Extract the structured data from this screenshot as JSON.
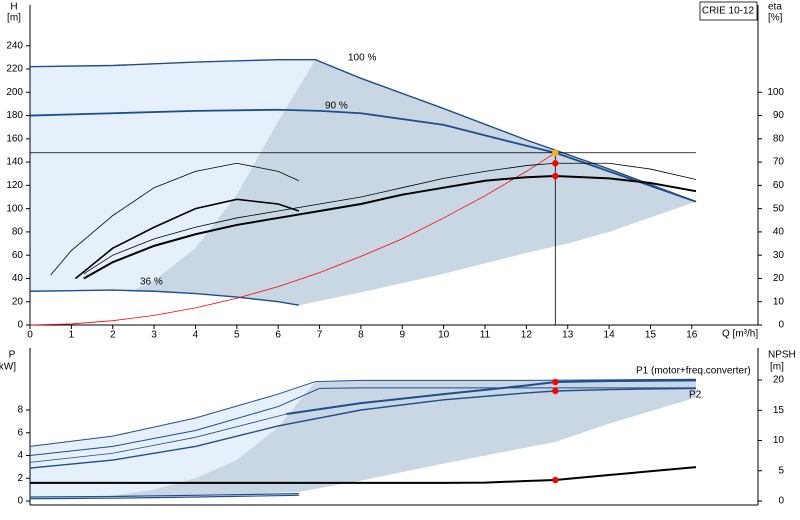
{
  "chart_data": [
    {
      "type": "line",
      "model": "CRIE 10-12",
      "y_label": "H",
      "y_unit": "[m]",
      "y2_label": "eta",
      "y2_unit": "[%]",
      "x_label": "Q [m³/h]",
      "xlim": [
        0,
        17.6
      ],
      "xticks": [
        0,
        1,
        2,
        3,
        4,
        5,
        6,
        7,
        8,
        9,
        10,
        11,
        12,
        13,
        14,
        15,
        16
      ],
      "ylim": [
        0,
        275
      ],
      "yticks": [
        0,
        20,
        40,
        60,
        80,
        100,
        120,
        140,
        160,
        180,
        200,
        220,
        240
      ],
      "y2lim": [
        0,
        137.5
      ],
      "y2ticks": [
        0,
        10,
        20,
        30,
        40,
        50,
        60,
        70,
        80,
        90,
        100
      ],
      "areas": [
        {
          "color": "#e6f0fa",
          "x": [
            0,
            2,
            4,
            6,
            6.9,
            8,
            10,
            12,
            14,
            16.1,
            14,
            13,
            12,
            10,
            8,
            6.5,
            6,
            5,
            4,
            3,
            2,
            1,
            0
          ],
          "values": [
            222,
            223,
            226,
            228,
            228,
            212,
            186,
            159,
            134,
            106,
            80,
            70,
            62,
            44,
            28,
            17,
            20,
            24,
            27,
            29,
            30,
            29.5,
            29
          ]
        },
        {
          "color": "#c8d7e3",
          "x": [
            6.9,
            6,
            5,
            4,
            3,
            2.5,
            3,
            4,
            5,
            6,
            6.5,
            8,
            10,
            12,
            13,
            14,
            16.1,
            14,
            12,
            10,
            8
          ],
          "values": [
            228,
            175,
            112,
            66,
            38,
            30,
            29,
            27,
            24,
            20,
            17,
            28,
            44,
            62,
            70,
            80,
            106,
            134,
            159,
            186,
            212
          ]
        }
      ],
      "series": [
        {
          "name": "100 %",
          "color": "#1f4e8c",
          "width": 1.4,
          "x": [
            0,
            2,
            4,
            6,
            6.9,
            8,
            10,
            12,
            14,
            16.1
          ],
          "values": [
            222,
            223,
            226,
            228,
            228,
            212,
            186,
            159,
            134,
            106
          ]
        },
        {
          "name": "90 %",
          "color": "#1f4e8c",
          "width": 1.8,
          "x": [
            0,
            2,
            4,
            6,
            7,
            8,
            10,
            11,
            12,
            12.7,
            14,
            16.1
          ],
          "values": [
            180,
            182,
            184,
            185,
            184,
            182,
            172,
            163,
            154,
            148,
            132,
            106
          ]
        },
        {
          "name": "36 %",
          "color": "#1f4e8c",
          "width": 1.4,
          "x": [
            0,
            1,
            2,
            3,
            4,
            5,
            6,
            6.5
          ],
          "values": [
            29,
            29.5,
            30,
            29,
            27,
            24,
            20,
            17
          ]
        },
        {
          "color": "#000000",
          "width": 0.8,
          "x": [
            0,
            16.1
          ],
          "values": [
            148,
            148
          ]
        },
        {
          "color": "#000000",
          "width": 0.8,
          "x": [
            12.7,
            12.7
          ],
          "values": [
            148,
            0
          ]
        },
        {
          "color": "#ff0000",
          "width": 0.8,
          "x": [
            0,
            1,
            2,
            3,
            4,
            5,
            6,
            7,
            8,
            9,
            10,
            11,
            12,
            12.7
          ],
          "values": [
            0,
            0.9,
            3.7,
            8.3,
            14.7,
            23,
            33,
            45,
            59,
            74,
            92,
            111,
            132,
            148
          ]
        },
        {
          "color": "#000000",
          "width": 0.8,
          "axis": "y2",
          "x": [
            1.3,
            2,
            3,
            4,
            5,
            6,
            7,
            8,
            9,
            10,
            11,
            12,
            12.7,
            14,
            15,
            16.1
          ],
          "values": [
            22,
            30,
            37,
            42,
            46,
            49,
            52,
            55,
            59,
            63,
            66,
            68.5,
            69.5,
            69.5,
            67,
            62.5
          ]
        },
        {
          "color": "#000000",
          "width": 2,
          "axis": "y2",
          "x": [
            1.3,
            2,
            3,
            4,
            5,
            6,
            7,
            8,
            9,
            10,
            11,
            12,
            12.7,
            14,
            15,
            16.1
          ],
          "values": [
            20,
            27,
            34,
            39,
            43,
            46,
            49,
            52,
            56,
            59,
            62,
            63.5,
            64,
            63,
            61,
            57.5
          ]
        },
        {
          "color": "#000000",
          "width": 0.8,
          "axis": "y2",
          "x": [
            0.5,
            1,
            2,
            3,
            4,
            5,
            6,
            6.5
          ],
          "values": [
            21.5,
            32,
            47,
            59,
            66,
            69.5,
            66,
            62
          ]
        },
        {
          "color": "#000000",
          "width": 1.6,
          "axis": "y2",
          "x": [
            1.1,
            2,
            3,
            4,
            5,
            6,
            6.5
          ],
          "values": [
            20,
            33,
            42,
            50,
            54,
            52,
            49
          ]
        },
        {
          "style": "points",
          "colors": [
            "#ffb000",
            "#ff0000",
            "#ff0000"
          ],
          "x": [
            12.7,
            12.7,
            12.7
          ],
          "values": [
            148,
            139,
            128
          ]
        }
      ]
    },
    {
      "type": "line",
      "y_label": "P",
      "y_unit": "[kW]",
      "y2_label": "NPSH",
      "y2_unit": "[m]",
      "xlim": [
        0,
        17.6
      ],
      "ylim": [
        -0.35,
        13.45
      ],
      "yticks": [
        0,
        2,
        4,
        6,
        8
      ],
      "y2lim": [
        -0.66,
        25.3
      ],
      "y2ticks": [
        0,
        5,
        10,
        15,
        20
      ],
      "areas": [
        {
          "color": "#e6f0fa",
          "x": [
            0,
            2,
            4,
            6,
            6.9,
            8,
            10,
            12,
            14,
            16.1,
            16.1,
            14,
            12.7,
            10,
            8,
            6.5,
            4,
            2,
            0
          ],
          "values": [
            4.8,
            5.7,
            7.3,
            9.4,
            10.5,
            10.6,
            10.6,
            10.6,
            10.65,
            10.7,
            9.1,
            6.8,
            5.2,
            3.3,
            1.8,
            0.8,
            0.5,
            0.35,
            0.25
          ]
        },
        {
          "color": "#c8d7e3",
          "x": [
            6.9,
            6,
            5,
            4,
            3,
            1.8,
            4,
            6.5,
            8,
            10,
            12.7,
            14,
            16.1,
            16.1,
            14,
            12,
            10,
            8
          ],
          "values": [
            10.5,
            6.5,
            3.6,
            2.0,
            1.0,
            0.35,
            0.5,
            0.8,
            1.8,
            3.3,
            5.2,
            6.8,
            9.1,
            10.7,
            10.65,
            10.6,
            10.6,
            10.6
          ]
        }
      ],
      "series": [
        {
          "name": "P1 (motor+freq.converter)",
          "color": "#1f4e8c",
          "width": 1,
          "x": [
            0,
            2,
            4,
            6,
            6.9,
            8,
            10,
            12,
            14,
            16.1
          ],
          "values": [
            4.8,
            5.7,
            7.3,
            9.4,
            10.5,
            10.6,
            10.6,
            10.6,
            10.65,
            10.7
          ]
        },
        {
          "name": "P2",
          "color": "#1f4e8c",
          "width": 1,
          "x": [
            0,
            2,
            4,
            6,
            7,
            8,
            10,
            12,
            14,
            16.1
          ],
          "values": [
            4.0,
            4.8,
            6.2,
            8.3,
            9.9,
            9.95,
            9.95,
            9.95,
            9.95,
            9.95
          ]
        },
        {
          "color": "#1f4e8c",
          "width": 0.8,
          "x": [
            0,
            2,
            4,
            6.2
          ],
          "values": [
            3.4,
            4.2,
            5.6,
            7.65
          ]
        },
        {
          "color": "#1f4e8c",
          "width": 2,
          "x": [
            6.2,
            8,
            10,
            12,
            12.7,
            14,
            16.1
          ],
          "values": [
            7.65,
            8.6,
            9.4,
            10.15,
            10.46,
            10.55,
            10.6
          ]
        },
        {
          "color": "#1f4e8c",
          "width": 1.4,
          "x": [
            0,
            2,
            4,
            6,
            8,
            10,
            12,
            12.7,
            14,
            16.1
          ],
          "values": [
            2.9,
            3.6,
            4.8,
            6.6,
            8.0,
            8.9,
            9.5,
            9.67,
            9.8,
            9.9
          ]
        },
        {
          "color": "#1f4e8c",
          "width": 1.2,
          "x": [
            0,
            2,
            4,
            6.5
          ],
          "values": [
            0.35,
            0.4,
            0.5,
            0.65
          ]
        },
        {
          "color": "#1f4e8c",
          "width": 1.2,
          "x": [
            0,
            2,
            4,
            6.5
          ],
          "values": [
            0.2,
            0.25,
            0.35,
            0.5
          ]
        },
        {
          "color": "#000000",
          "width": 2,
          "axis": "y2",
          "x": [
            0,
            2,
            4,
            6,
            8,
            10,
            11,
            12,
            12.7,
            14,
            16.1
          ],
          "values": [
            3,
            3,
            3,
            3,
            3,
            3,
            3.05,
            3.3,
            3.47,
            4.3,
            5.6
          ]
        },
        {
          "style": "points",
          "colors": [
            "#ff0000",
            "#ff0000"
          ],
          "x": [
            12.7,
            12.7
          ],
          "values": [
            10.46,
            9.67
          ]
        },
        {
          "style": "points",
          "axis": "y2",
          "colors": [
            "#ff0000"
          ],
          "x": [
            12.7
          ],
          "values": [
            3.47
          ]
        }
      ]
    }
  ]
}
